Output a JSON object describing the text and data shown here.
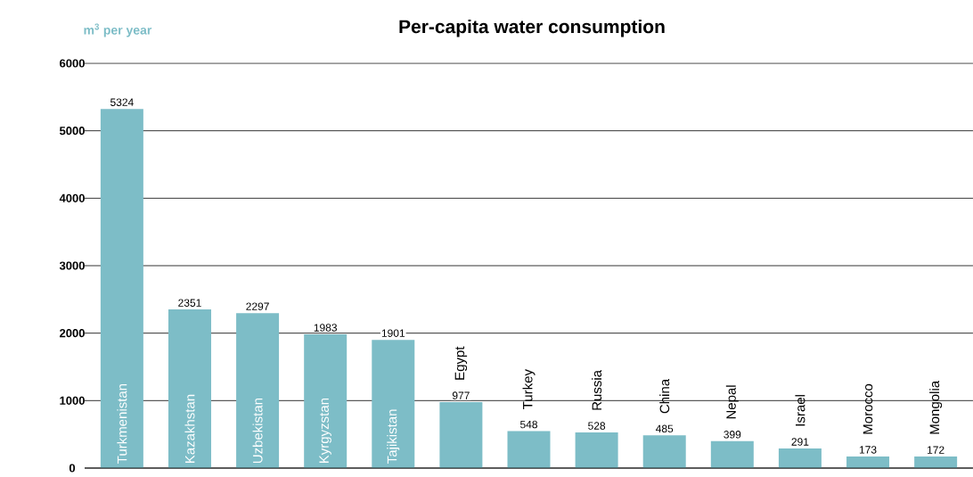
{
  "chart_data": {
    "type": "bar",
    "title": "Per-capita water consumption",
    "ylabel": "m$^{3}$ per year",
    "categories": [
      "Turkmenistan",
      "Kazakhstan",
      "Uzbekistan",
      "Kyrgyzstan",
      "Tajikistan",
      "Egypt",
      "Turkey",
      "Russia",
      "China",
      "Nepal",
      "Israel",
      "Morocco",
      "Mongolia"
    ],
    "values": [
      5324,
      2351,
      2297,
      1983,
      1901,
      977,
      548,
      528,
      485,
      399,
      291,
      173,
      172
    ],
    "color": "#7dbdc7",
    "ylim": [
      0,
      6000
    ],
    "yticks": [
      0,
      1000,
      2000,
      3000,
      4000,
      5000,
      6000
    ],
    "grid": "y",
    "data_labels": true
  }
}
